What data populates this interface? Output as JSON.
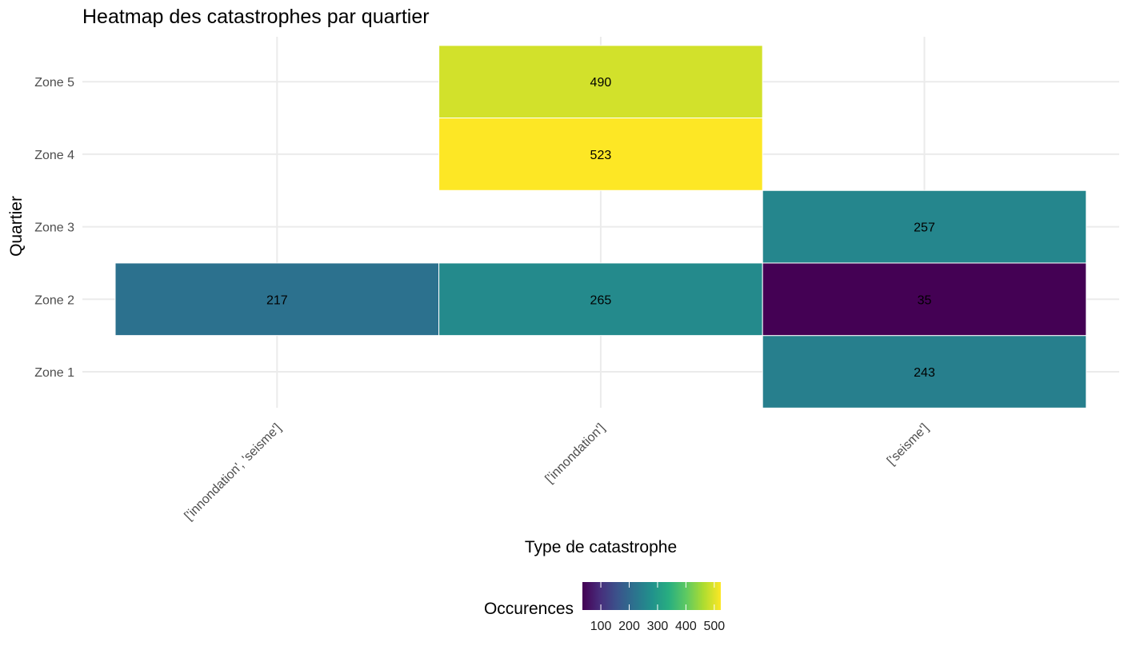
{
  "chart_data": {
    "type": "heatmap",
    "title": "Heatmap des catastrophes par quartier",
    "xlabel": "Type de catastrophe",
    "ylabel": "Quartier",
    "x_categories": [
      "['innondation', 'seisme']",
      "['innondation']",
      "['seisme']"
    ],
    "y_categories": [
      "Zone 1",
      "Zone 2",
      "Zone 3",
      "Zone 4",
      "Zone 5"
    ],
    "cells": [
      {
        "x": "['innondation', 'seisme']",
        "y": "Zone 2",
        "value": 217
      },
      {
        "x": "['innondation']",
        "y": "Zone 2",
        "value": 265
      },
      {
        "x": "['innondation']",
        "y": "Zone 4",
        "value": 523
      },
      {
        "x": "['innondation']",
        "y": "Zone 5",
        "value": 490
      },
      {
        "x": "['seisme']",
        "y": "Zone 1",
        "value": 243
      },
      {
        "x": "['seisme']",
        "y": "Zone 2",
        "value": 35
      },
      {
        "x": "['seisme']",
        "y": "Zone 3",
        "value": 257
      }
    ],
    "colorscale": "viridis",
    "color_range": [
      35,
      523
    ],
    "legend": {
      "title": "Occurences",
      "ticks": [
        100,
        200,
        300,
        400,
        500
      ],
      "position": "bottom"
    },
    "grid": true
  }
}
